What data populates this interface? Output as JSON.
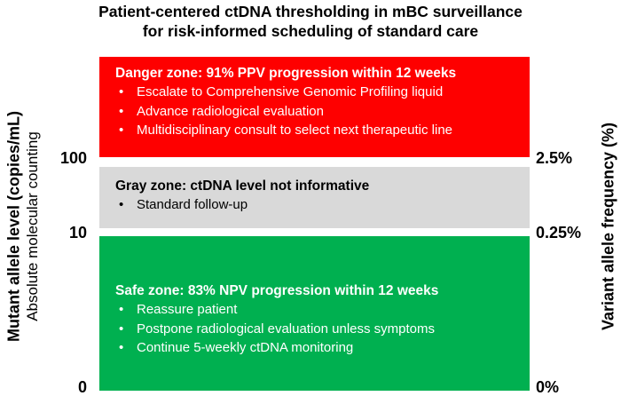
{
  "title": {
    "line1": "Patient-centered ctDNA thresholding in mBC surveillance",
    "line2": "for risk-informed scheduling of standard care"
  },
  "zones": {
    "danger": {
      "header": "Danger zone: 91% PPV progression within 12 weeks",
      "bullets": [
        "Escalate to Comprehensive Genomic Profiling liquid",
        "Advance radiological evaluation",
        "Multidisciplinary consult to select next therapeutic line"
      ],
      "color": "#fe0000"
    },
    "gray": {
      "header": "Gray zone: ctDNA level not informative",
      "bullets": [
        "Standard follow-up"
      ],
      "color": "#d9d9d9"
    },
    "safe": {
      "header": "Safe zone: 83% NPV progression within 12 weeks",
      "bullets": [
        "Reassure patient",
        "Postpone radiological evaluation unless symptoms",
        "Continue 5-weekly ctDNA monitoring"
      ],
      "color": "#00b050"
    }
  },
  "bullet_char": "•",
  "left_axis": {
    "label": "Mutant allele level (copies/mL)",
    "sublabel": "Absolute molecular counting",
    "ticks": [
      "100",
      "10",
      "0"
    ]
  },
  "right_axis": {
    "label": "Variant allele frequency (%)",
    "ticks": [
      "2.5%",
      "0.25%",
      "0%"
    ]
  }
}
